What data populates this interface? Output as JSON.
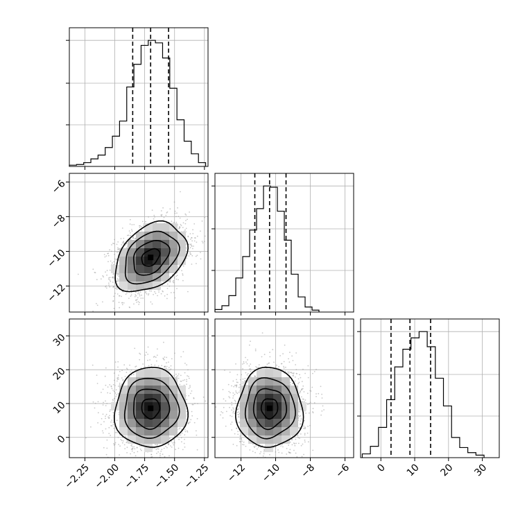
{
  "chart_data": {
    "type": "corner",
    "grid": true,
    "parameters": [
      {
        "range": [
          -2.38,
          -1.22
        ],
        "ticks": [
          -2.25,
          -2.0,
          -1.75,
          -1.5,
          -1.25
        ],
        "tick_labels": [
          "−2.25",
          "−2.00",
          "−1.75",
          "−1.50",
          "−1.25"
        ]
      },
      {
        "range": [
          -13.5,
          -5.5
        ],
        "ticks": [
          -12,
          -10,
          -8,
          -6
        ],
        "tick_labels": [
          "−12",
          "−10",
          "−8",
          "−6"
        ]
      },
      {
        "range": [
          -6,
          35
        ],
        "ticks": [
          0,
          10,
          20,
          30
        ],
        "tick_labels": [
          "0",
          "10",
          "20",
          "30"
        ]
      }
    ],
    "marginals": [
      {
        "param": 0,
        "bin_edges": [
          -2.38,
          -2.32,
          -2.26,
          -2.2,
          -2.14,
          -2.08,
          -2.02,
          -1.96,
          -1.9,
          -1.84,
          -1.78,
          -1.72,
          -1.66,
          -1.6,
          -1.54,
          -1.48,
          -1.42,
          -1.36,
          -1.3,
          -1.24
        ],
        "counts": [
          0.01,
          0.015,
          0.03,
          0.06,
          0.09,
          0.15,
          0.24,
          0.36,
          0.63,
          0.81,
          0.96,
          1.0,
          0.98,
          0.86,
          0.62,
          0.37,
          0.2,
          0.1,
          0.03
        ],
        "quantiles": [
          -1.85,
          -1.7,
          -1.55
        ]
      },
      {
        "param": 1,
        "bin_edges": [
          -13.5,
          -13.1,
          -12.7,
          -12.3,
          -11.9,
          -11.5,
          -11.1,
          -10.7,
          -10.3,
          -9.9,
          -9.5,
          -9.1,
          -8.7,
          -8.3,
          -7.9,
          -7.5
        ],
        "counts": [
          0.02,
          0.05,
          0.13,
          0.27,
          0.44,
          0.65,
          0.82,
          1.0,
          0.99,
          0.8,
          0.57,
          0.3,
          0.12,
          0.04,
          0.015
        ],
        "quantiles": [
          -11.2,
          -10.35,
          -9.4
        ]
      },
      {
        "param": 2,
        "bin_edges": [
          -5.5,
          -3.1,
          -0.7,
          1.7,
          4.1,
          6.5,
          8.9,
          11.3,
          13.7,
          16.1,
          18.5,
          20.9,
          23.3,
          25.7,
          28.1,
          30.5
        ],
        "counts": [
          0.03,
          0.09,
          0.24,
          0.46,
          0.72,
          0.86,
          0.95,
          1.0,
          0.88,
          0.63,
          0.41,
          0.16,
          0.08,
          0.04,
          0.02
        ],
        "quantiles": [
          3.0,
          8.6,
          14.7
        ]
      }
    ],
    "joint_panels": [
      {
        "x_param": 0,
        "y_param": 1,
        "center": [
          -1.7,
          -10.35
        ],
        "sigma": [
          0.15,
          1.0
        ],
        "correlation": 0.35,
        "contour_levels_sigma": [
          0.5,
          1.0,
          1.5,
          2.0
        ],
        "n_points": 2500
      },
      {
        "x_param": 0,
        "y_param": 2,
        "center": [
          -1.7,
          8.6
        ],
        "sigma": [
          0.15,
          5.9
        ],
        "correlation": 0.0,
        "contour_levels_sigma": [
          0.5,
          1.0,
          1.5,
          2.0
        ],
        "n_points": 2500
      },
      {
        "x_param": 1,
        "y_param": 2,
        "center": [
          -10.35,
          8.6
        ],
        "sigma": [
          0.95,
          5.9
        ],
        "correlation": 0.0,
        "contour_levels_sigma": [
          0.5,
          1.0,
          1.5,
          2.0
        ],
        "n_points": 2500
      }
    ]
  }
}
